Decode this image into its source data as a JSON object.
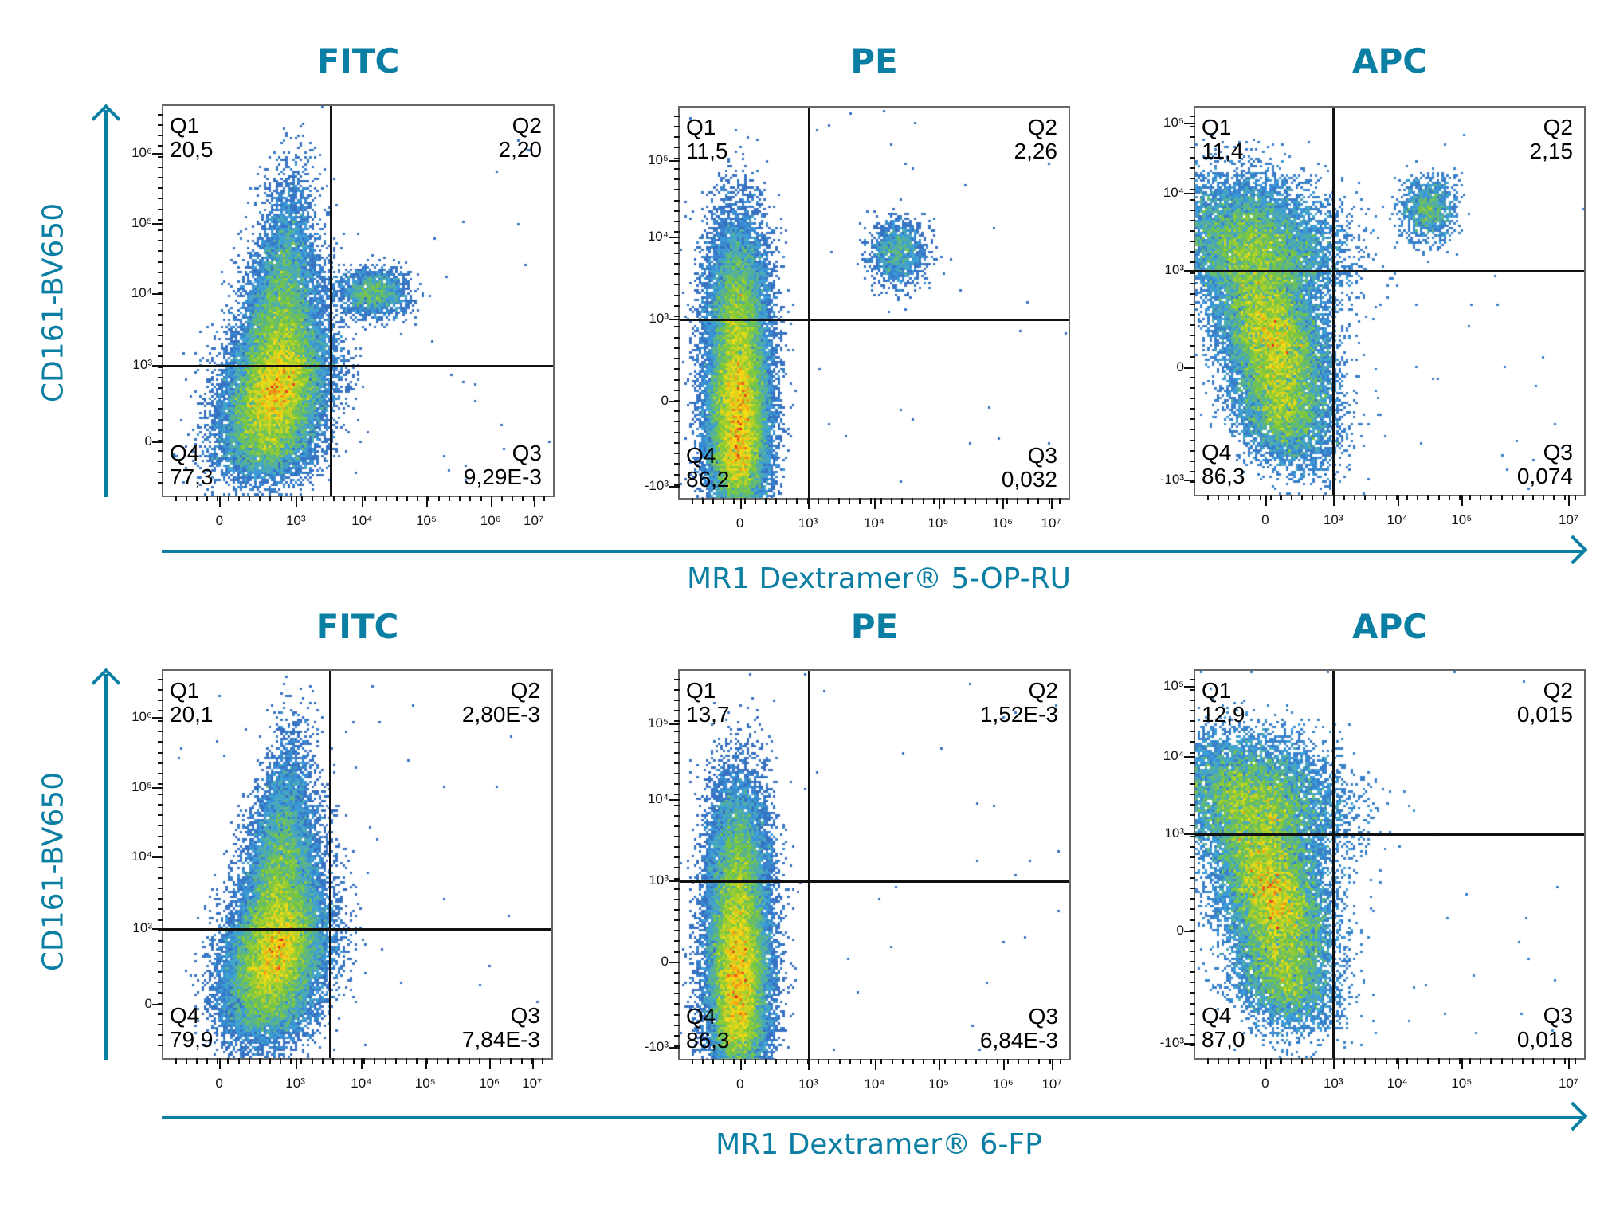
{
  "chart_data": {
    "type": "scatter",
    "subtype": "flow-cytometry-density-quadrant-plots",
    "colors": {
      "accent": "#0a7fa3",
      "gate": "#111111"
    },
    "rows": [
      {
        "xlabel": "MR1 Dextramer® 5-OP-RU",
        "ylabel": "CD161-BV650",
        "panels": [
          {
            "title": "FITC",
            "quadrants": {
              "Q1": "20,5",
              "Q2": "2,20",
              "Q3": "9,29E-3",
              "Q4": "77,3"
            },
            "xticks": [
              "0",
              "10³",
              "10⁴",
              "10⁵",
              "10⁶",
              "10⁷"
            ],
            "yticks": [
              "10⁶",
              "10⁵",
              "10⁴",
              "10³",
              "0"
            ]
          },
          {
            "title": "PE",
            "quadrants": {
              "Q1": "11,5",
              "Q2": "2,26",
              "Q3": "0,032",
              "Q4": "86,2"
            },
            "xticks": [
              "0",
              "10³",
              "10⁴",
              "10⁵",
              "10⁶",
              "10⁷"
            ],
            "yticks": [
              "10⁵",
              "10⁴",
              "10³",
              "0",
              "-10³"
            ]
          },
          {
            "title": "APC",
            "quadrants": {
              "Q1": "11,4",
              "Q2": "2,15",
              "Q3": "0,074",
              "Q4": "86,3"
            },
            "xticks": [
              "0",
              "10³",
              "10⁴",
              "10⁵",
              "10⁷"
            ],
            "yticks": [
              "10⁵",
              "10⁴",
              "10³",
              "0",
              "-10³"
            ]
          }
        ]
      },
      {
        "xlabel": "MR1 Dextramer® 6-FP",
        "ylabel": "CD161-BV650",
        "panels": [
          {
            "title": "FITC",
            "quadrants": {
              "Q1": "20,1",
              "Q2": "2,80E-3",
              "Q3": "7,84E-3",
              "Q4": "79,9"
            },
            "xticks": [
              "0",
              "10³",
              "10⁴",
              "10⁵",
              "10⁶",
              "10⁷"
            ],
            "yticks": [
              "10⁶",
              "10⁵",
              "10⁴",
              "10³",
              "0"
            ]
          },
          {
            "title": "PE",
            "quadrants": {
              "Q1": "13,7",
              "Q2": "1,52E-3",
              "Q3": "6,84E-3",
              "Q4": "86,3"
            },
            "xticks": [
              "0",
              "10³",
              "10⁴",
              "10⁵",
              "10⁶",
              "10⁷"
            ],
            "yticks": [
              "10⁵",
              "10⁴",
              "10³",
              "0",
              "-10³"
            ]
          },
          {
            "title": "APC",
            "quadrants": {
              "Q1": "12,9",
              "Q2": "0,015",
              "Q3": "0,018",
              "Q4": "87,0"
            },
            "xticks": [
              "0",
              "10³",
              "10⁴",
              "10⁵",
              "10⁷"
            ],
            "yticks": [
              "10⁵",
              "10⁴",
              "10³",
              "0",
              "-10³"
            ]
          }
        ]
      }
    ]
  }
}
